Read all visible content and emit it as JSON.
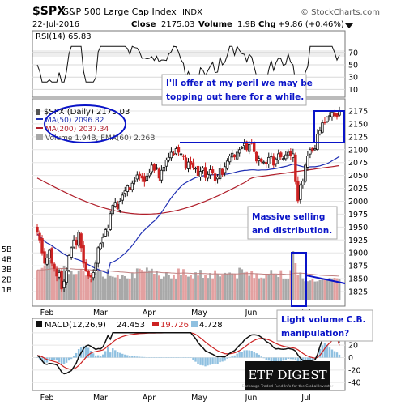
{
  "header": {
    "symbol": "$SPX",
    "name": "S&P 500 Large Cap Index",
    "exchange": "INDX",
    "date": "22-Jul-2016",
    "close_label": "Close",
    "close": "2175.03",
    "volume_label": "Volume",
    "volume": "1.9B",
    "chg_label": "Chg",
    "chg": "+9.86 (+0.46%)",
    "watermark": "© StockCharts.com",
    "triangle_icon": "down-triangle-icon"
  },
  "rsi_panel": {
    "label": "RSI(14) 65.83",
    "ticks": [
      "70",
      "50",
      "30",
      "10"
    ],
    "ylim": [
      0,
      100
    ]
  },
  "price_panel": {
    "legend": {
      "symbol": "$SPX (Daily) 2175.03",
      "ma50": "MA(50) 2096.82",
      "ma200": "MA(200) 2037.34",
      "volume": "Volume 1.94B, EMA(60) 2.26B"
    },
    "price_ticks": [
      "2175",
      "2150",
      "2125",
      "2100",
      "2075",
      "2050",
      "2025",
      "2000",
      "1975",
      "1950",
      "1925",
      "1900",
      "1875",
      "1850",
      "1825"
    ],
    "volume_ticks": [
      "5B",
      "4B",
      "3B",
      "2B",
      "1B"
    ],
    "colors": {
      "ma50": "#1f2fb3",
      "ma200": "#b01e2a",
      "up": "#111111",
      "down": "#cc2222",
      "vol_up": "#a8a8a8",
      "vol_down": "#e3a0a0",
      "annotation": "#0a14c8"
    }
  },
  "x_axis": {
    "labels": [
      "Feb",
      "Mar",
      "Apr",
      "May",
      "Jun",
      "Jul"
    ]
  },
  "macd_panel": {
    "label": "MACD(12,26,9)",
    "v1": "24.453",
    "v2": "19.726",
    "v3": "4.728",
    "ticks": [
      "40",
      "20",
      "0",
      "-20",
      "-40"
    ]
  },
  "annotations": {
    "top": [
      "I'll offer at my peril we may be",
      "topping out here for a while."
    ],
    "selling": [
      "Massive selling",
      "and distribution."
    ],
    "light_volume": [
      "Light volume C.B.",
      "manipulation?"
    ]
  },
  "logo": {
    "title": "ETF DIGEST",
    "tagline": "Exchange Traded Fund Info for the Global Investor"
  },
  "chart_data": {
    "type": "candlestick",
    "period": "Jan 2016 - 22 Jul 2016",
    "x": [
      "Feb",
      "Mar",
      "Apr",
      "May",
      "Jun",
      "Jul"
    ],
    "price": {
      "ylim": [
        1805,
        2185
      ],
      "approx_closes": [
        1940,
        1925,
        1900,
        1880,
        1890,
        1905,
        1880,
        1870,
        1855,
        1862,
        1830,
        1845,
        1865,
        1895,
        1910,
        1925,
        1915,
        1940,
        1910,
        1880,
        1865,
        1855,
        1853,
        1862,
        1880,
        1910,
        1918,
        1930,
        1945,
        1948,
        1976,
        1992,
        1998,
        1986,
        2000,
        2012,
        2020,
        2030,
        2022,
        2035,
        2040,
        2051,
        2050,
        2045,
        2038,
        2049,
        2055,
        2070,
        2060,
        2065,
        2045,
        2060,
        2066,
        2080,
        2085,
        2095,
        2092,
        2102,
        2095,
        2092,
        2088,
        2065,
        2076,
        2071,
        2066,
        2064,
        2050,
        2058,
        2064,
        2046,
        2052,
        2061,
        2056,
        2040,
        2047,
        2064,
        2052,
        2067,
        2078,
        2088,
        2093,
        2086,
        2095,
        2100,
        2104,
        2112,
        2100,
        2110,
        2113,
        2096,
        2078,
        2083,
        2077,
        2076,
        2072,
        2085,
        2088,
        2070,
        2082,
        2092,
        2086,
        2083,
        2090,
        2095,
        2088,
        2092,
        2038,
        2001,
        2031,
        2039,
        2070,
        2088,
        2100,
        2097,
        2102,
        2130,
        2137,
        2152,
        2153,
        2163,
        2166,
        2173,
        2166,
        2163,
        2175
      ],
      "ma50": {
        "start": 1900,
        "end": 2096.82
      },
      "ma200": {
        "start": 2050,
        "min": 1995,
        "end": 2037.34
      }
    },
    "rsi": {
      "last": 65.83,
      "ylim": [
        0,
        100
      ]
    },
    "volume": {
      "units": "B",
      "last": 1.94,
      "ema60": 2.26,
      "ylim": [
        0,
        6
      ]
    },
    "macd": {
      "macd": 24.453,
      "signal": 19.726,
      "histogram": 4.728,
      "ylim": [
        -50,
        50
      ]
    }
  }
}
